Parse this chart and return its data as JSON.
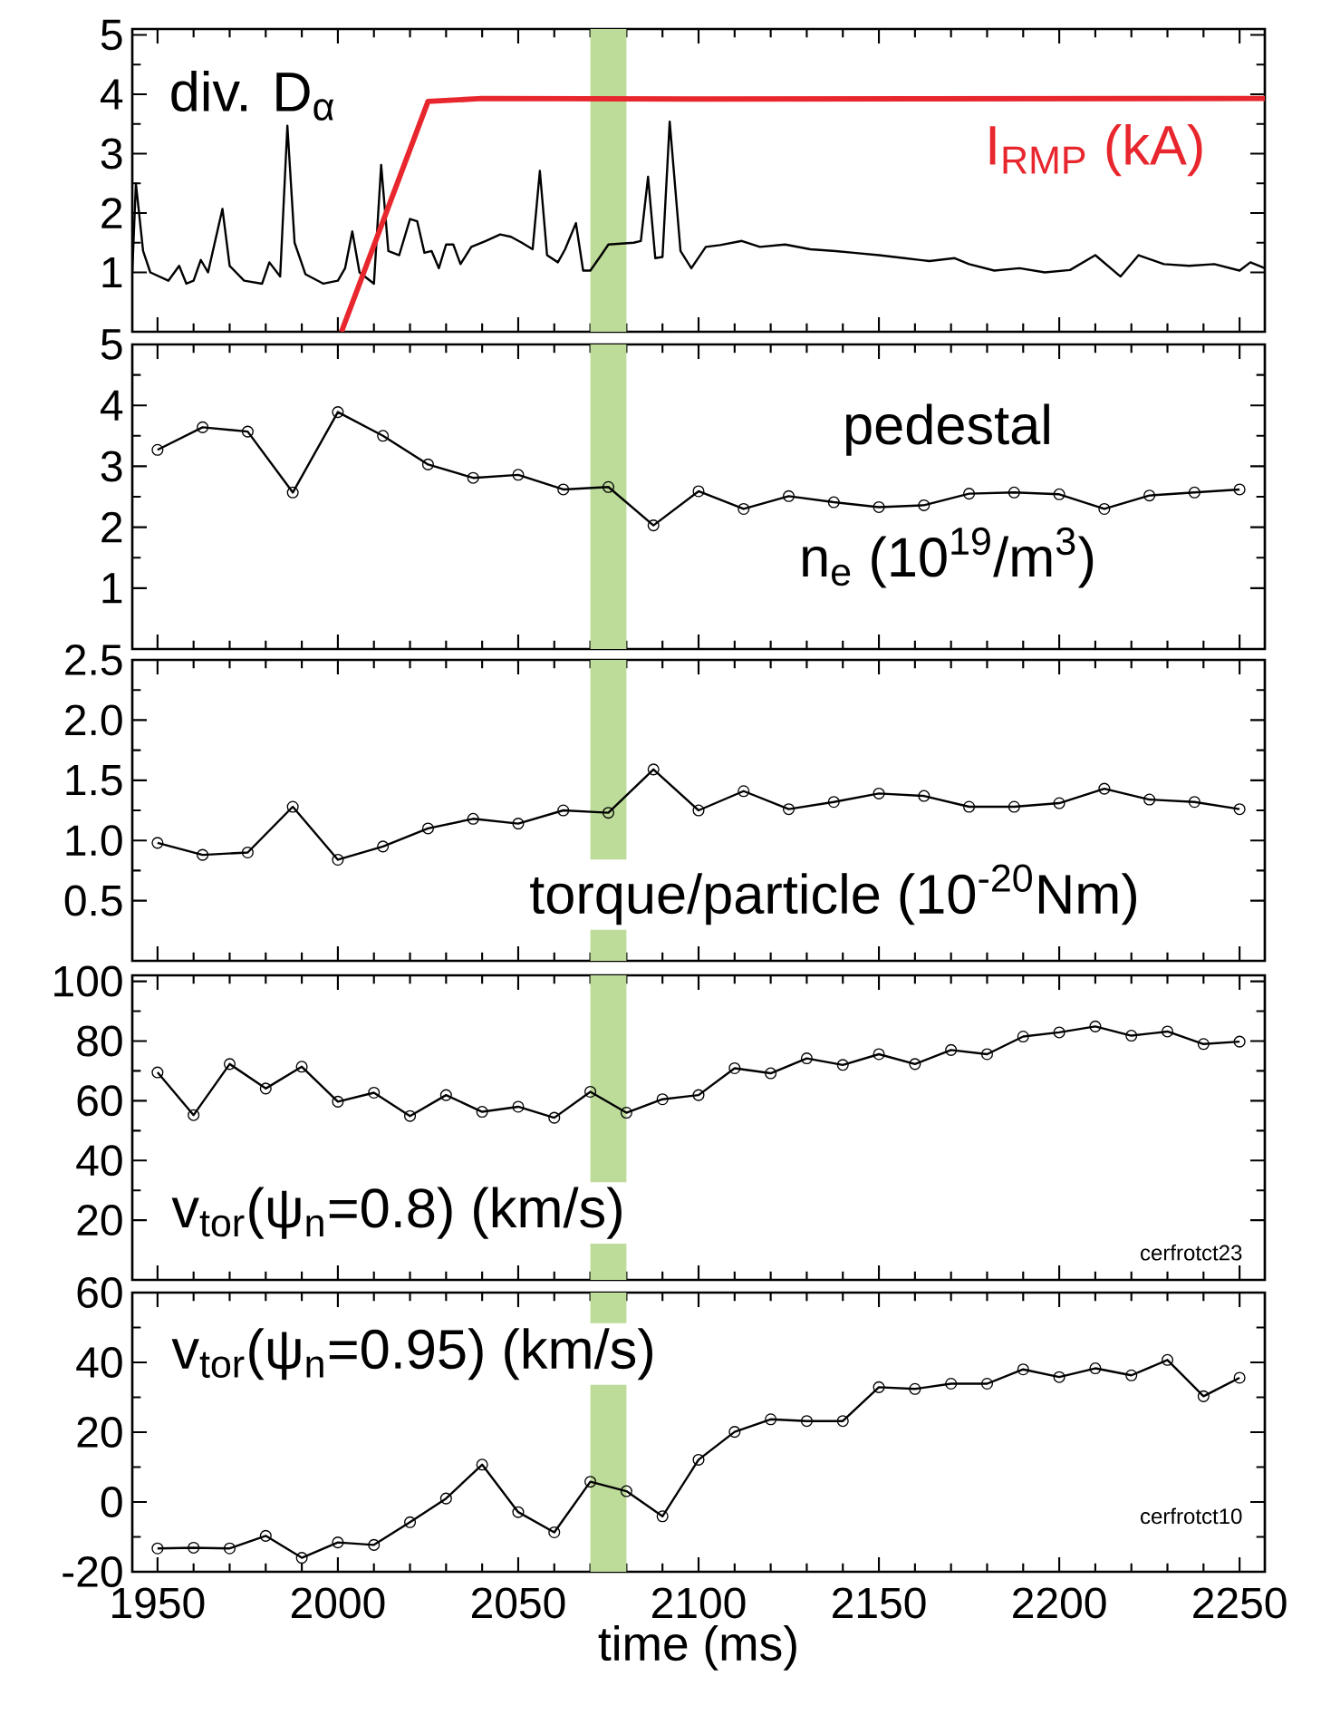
{
  "chart_data": [
    {
      "type": "line",
      "xlim": [
        1943,
        2257
      ],
      "xticks": [
        1950,
        2000,
        2050,
        2100,
        2150,
        2200,
        2250
      ],
      "ylim": [
        0,
        5.1
      ],
      "yticks": [
        1,
        2,
        3,
        4,
        5
      ],
      "tick_labels": "y",
      "legend": "top",
      "bands": [
        {
          "axis": "x",
          "from": 2070,
          "to": 2080,
          "color": "#bddc9a"
        }
      ],
      "series": [
        {
          "name": "div. D$_{α}$",
          "color": "#000000",
          "x": [
            1943,
            1944,
            1946,
            1948,
            1953,
            1956,
            1958,
            1960,
            1962,
            1964,
            1968,
            1970,
            1974,
            1979,
            1981,
            1984,
            1986,
            1988,
            1991,
            1996,
            2000,
            2002,
            2004,
            2006,
            2010,
            2012,
            2014,
            2017,
            2020,
            2022,
            2024,
            2026,
            2028,
            2030,
            2032,
            2034,
            2037,
            2041,
            2045,
            2048,
            2051,
            2054,
            2056,
            2058,
            2061,
            2063,
            2066,
            2068,
            2070,
            2073,
            2075,
            2082,
            2084,
            2086,
            2088,
            2090,
            2092,
            2095,
            2098,
            2102,
            2106,
            2112,
            2117,
            2124,
            2131,
            2138,
            2143,
            2150,
            2157,
            2164,
            2171,
            2175,
            2182,
            2189,
            2196,
            2203,
            2210,
            2217,
            2222,
            2229,
            2236,
            2243,
            2250,
            2253,
            2257
          ],
          "values": [
            1.0,
            2.5,
            1.36,
            1.0,
            0.86,
            1.11,
            0.81,
            0.86,
            1.21,
            1.0,
            2.07,
            1.11,
            0.86,
            0.81,
            1.17,
            0.93,
            3.47,
            1.5,
            0.97,
            0.81,
            0.86,
            1.07,
            1.69,
            1.0,
            0.81,
            2.81,
            1.36,
            1.29,
            1.9,
            1.86,
            1.33,
            1.36,
            1.07,
            1.47,
            1.47,
            1.14,
            1.43,
            1.53,
            1.64,
            1.6,
            1.5,
            1.39,
            2.71,
            1.29,
            1.17,
            1.39,
            1.83,
            1.03,
            1.03,
            1.29,
            1.47,
            1.5,
            1.53,
            2.61,
            1.24,
            1.26,
            3.54,
            1.36,
            1.07,
            1.43,
            1.46,
            1.53,
            1.43,
            1.47,
            1.39,
            1.36,
            1.33,
            1.29,
            1.24,
            1.19,
            1.24,
            1.14,
            1.03,
            1.07,
            1.0,
            1.04,
            1.29,
            0.93,
            1.29,
            1.14,
            1.11,
            1.14,
            1.03,
            1.17,
            1.07
          ]
        },
        {
          "name": "I$_{RMP}$ (kA)",
          "color": "#e8262d",
          "x": [
            2001,
            2025,
            2040,
            2100,
            2257
          ],
          "values": [
            0,
            3.88,
            3.93,
            3.92,
            3.93
          ]
        }
      ]
    },
    {
      "type": "line",
      "xlim": [
        1943,
        2257
      ],
      "xticks": [
        1950,
        2000,
        2050,
        2100,
        2150,
        2200,
        2250
      ],
      "ylim": [
        0,
        5
      ],
      "yticks": [
        1,
        2,
        3,
        4,
        5
      ],
      "tick_labels": "y",
      "marker": "circle",
      "bands": [
        {
          "axis": "x",
          "from": 2070,
          "to": 2080,
          "color": "#bddc9a"
        }
      ],
      "annotations": [
        "pedestal",
        "n$_{e}$ (10$^{19}$/m$^{3}$)"
      ],
      "series": [
        {
          "color": "#000000",
          "x": [
            1950,
            1962.5,
            1975,
            1987.5,
            2000,
            2012.5,
            2025,
            2037.5,
            2050,
            2062.5,
            2075,
            2087.5,
            2100,
            2112.5,
            2125,
            2137.5,
            2150,
            2162.5,
            2175,
            2187.5,
            2200,
            2212.5,
            2225,
            2237.5,
            2250
          ],
          "values": [
            3.27,
            3.64,
            3.57,
            2.57,
            3.89,
            3.5,
            3.03,
            2.81,
            2.86,
            2.62,
            2.66,
            2.03,
            2.59,
            2.3,
            2.51,
            2.41,
            2.33,
            2.36,
            2.55,
            2.57,
            2.54,
            2.3,
            2.52,
            2.57,
            2.62
          ]
        }
      ]
    },
    {
      "type": "line",
      "xlim": [
        1943,
        2257
      ],
      "xticks": [
        1950,
        2000,
        2050,
        2100,
        2150,
        2200,
        2250
      ],
      "ylim": [
        0,
        2.5
      ],
      "yticks": [
        0.5,
        {
          "value": 1,
          "label": "1.0"
        },
        1.5,
        {
          "value": 2,
          "label": "2.0"
        },
        2.5
      ],
      "tick_labels": "y",
      "marker": "circle",
      "bands": [
        {
          "axis": "x",
          "from": 2070,
          "to": 2080,
          "color": "#bddc9a"
        }
      ],
      "annotations": [
        "torque/particle (10$^{-20}$Nm)"
      ],
      "series": [
        {
          "color": "#000000",
          "x": [
            1950,
            1962.5,
            1975,
            1987.5,
            2000,
            2012.5,
            2025,
            2037.5,
            2050,
            2062.5,
            2075,
            2087.5,
            2100,
            2112.5,
            2125,
            2137.5,
            2150,
            2162.5,
            2175,
            2187.5,
            2200,
            2212.5,
            2225,
            2237.5,
            2250
          ],
          "values": [
            0.98,
            0.88,
            0.9,
            1.28,
            0.84,
            0.95,
            1.1,
            1.18,
            1.14,
            1.25,
            1.23,
            1.59,
            1.25,
            1.41,
            1.26,
            1.32,
            1.39,
            1.37,
            1.28,
            1.28,
            1.31,
            1.43,
            1.34,
            1.32,
            1.26
          ]
        }
      ]
    },
    {
      "type": "line",
      "xlim": [
        1943,
        2257
      ],
      "xticks": [
        1950,
        2000,
        2050,
        2100,
        2150,
        2200,
        2250
      ],
      "ylim": [
        0,
        102
      ],
      "yticks": [
        20,
        40,
        60,
        80,
        100
      ],
      "tick_labels": "y",
      "marker": "circle",
      "bands": [
        {
          "axis": "x",
          "from": 2070,
          "to": 2080,
          "color": "#bddc9a"
        }
      ],
      "annotations": [
        "v$_{tor}$(ψ$_{n}$=0.8) (km/s)",
        "cerfrotct23"
      ],
      "series": [
        {
          "color": "#000000",
          "x": [
            1950,
            1960,
            1970,
            1980,
            1990,
            2000,
            2010,
            2020,
            2030,
            2040,
            2050,
            2060,
            2070,
            2080,
            2090,
            2100,
            2110,
            2120,
            2130,
            2140,
            2150,
            2160,
            2170,
            2180,
            2190,
            2200,
            2210,
            2220,
            2230,
            2240,
            2250
          ],
          "values": [
            69.5,
            55.2,
            72.3,
            64.1,
            71.4,
            59.7,
            62.7,
            54.9,
            61.9,
            56.3,
            58.0,
            54.3,
            63.0,
            56.0,
            60.5,
            61.9,
            70.9,
            69.2,
            74.2,
            72.0,
            75.6,
            72.3,
            77.0,
            75.6,
            81.5,
            82.9,
            84.9,
            81.8,
            83.2,
            79.0,
            79.8
          ]
        }
      ]
    },
    {
      "type": "line",
      "xlim": [
        1943,
        2257
      ],
      "xticks": [
        1950,
        2000,
        2050,
        2100,
        2150,
        2200,
        2250
      ],
      "ylim": [
        -20,
        60
      ],
      "yticks": [
        -20,
        0,
        20,
        40,
        60
      ],
      "marker": "circle",
      "xlabel": "time (ms)",
      "bands": [
        {
          "axis": "x",
          "from": 2070,
          "to": 2080,
          "color": "#bddc9a"
        }
      ],
      "annotations": [
        "v$_{tor}$(ψ$_{n}$=0.95) (km/s)",
        "cerfrotct10"
      ],
      "series": [
        {
          "color": "#000000",
          "x": [
            1950,
            1960,
            1970,
            1980,
            1990,
            2000,
            2010,
            2020,
            2030,
            2040,
            2050,
            2060,
            2070,
            2080,
            2090,
            2100,
            2110,
            2120,
            2130,
            2140,
            2150,
            2160,
            2170,
            2180,
            2190,
            2200,
            2210,
            2220,
            2230,
            2240,
            2250
          ],
          "values": [
            -13.3,
            -13.1,
            -13.3,
            -9.7,
            -16.0,
            -11.6,
            -12.3,
            -5.8,
            1.0,
            10.7,
            -2.9,
            -8.7,
            5.8,
            3.1,
            -4.1,
            12.1,
            20.1,
            23.7,
            23.2,
            23.2,
            32.9,
            32.4,
            33.9,
            33.9,
            38.0,
            35.8,
            38.3,
            36.3,
            40.7,
            30.3,
            35.6
          ]
        }
      ]
    }
  ]
}
